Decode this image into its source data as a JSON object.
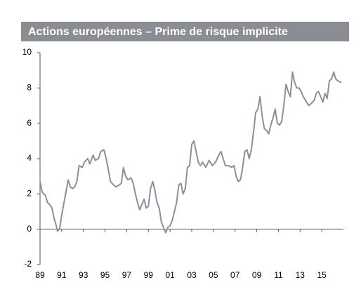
{
  "chart_data": {
    "type": "line",
    "title": "Actions européennes – Prime de risque implicite",
    "x": [
      1989.0,
      1989.2,
      1989.5,
      1989.7,
      1989.9,
      1990.1,
      1990.3,
      1990.5,
      1990.6,
      1990.8,
      1991.0,
      1991.3,
      1991.6,
      1991.8,
      1992.0,
      1992.2,
      1992.4,
      1992.6,
      1992.9,
      1993.1,
      1993.4,
      1993.6,
      1993.9,
      1994.1,
      1994.4,
      1994.6,
      1994.9,
      1995.1,
      1995.3,
      1995.5,
      1995.8,
      1996.0,
      1996.3,
      1996.5,
      1996.7,
      1996.9,
      1997.1,
      1997.4,
      1997.6,
      1997.8,
      1998.0,
      1998.2,
      1998.4,
      1998.6,
      1998.8,
      1999.0,
      1999.2,
      1999.4,
      1999.6,
      1999.8,
      2000.0,
      2000.2,
      2000.4,
      2000.6,
      2000.8,
      2001.0,
      2001.2,
      2001.4,
      2001.6,
      2001.8,
      2002.0,
      2002.2,
      2002.4,
      2002.6,
      2002.8,
      2003.0,
      2003.2,
      2003.4,
      2003.6,
      2003.8,
      2004.0,
      2004.3,
      2004.6,
      2004.9,
      2005.2,
      2005.5,
      2005.7,
      2005.9,
      2006.1,
      2006.4,
      2006.7,
      2006.9,
      2007.1,
      2007.3,
      2007.5,
      2007.7,
      2007.9,
      2008.1,
      2008.3,
      2008.5,
      2008.7,
      2008.9,
      2009.1,
      2009.3,
      2009.5,
      2009.7,
      2009.9,
      2010.1,
      2010.3,
      2010.5,
      2010.7,
      2010.9,
      2011.1,
      2011.3,
      2011.5,
      2011.7,
      2011.9,
      2012.1,
      2012.3,
      2012.5,
      2012.7,
      2012.9,
      2013.1,
      2013.3,
      2013.5,
      2013.8,
      2014.0,
      2014.3,
      2014.5,
      2014.7,
      2014.9,
      2015.1,
      2015.3,
      2015.5,
      2015.7,
      2015.9,
      2016.1,
      2016.3,
      2016.5,
      2016.8
    ],
    "series": [
      {
        "color": "#8a8f99",
        "values": [
          2.7,
          2.1,
          1.9,
          1.5,
          1.4,
          1.2,
          0.6,
          0.2,
          -0.1,
          0.0,
          0.8,
          1.8,
          2.8,
          2.4,
          2.3,
          2.4,
          2.7,
          3.6,
          3.5,
          3.8,
          4.0,
          3.7,
          4.2,
          3.9,
          4.0,
          4.4,
          4.5,
          4.0,
          3.4,
          2.7,
          2.5,
          2.4,
          2.5,
          2.6,
          3.5,
          3.0,
          2.8,
          2.9,
          2.6,
          2.0,
          1.5,
          1.1,
          1.4,
          1.7,
          1.2,
          1.3,
          2.3,
          2.7,
          2.2,
          1.5,
          1.2,
          0.4,
          0.1,
          -0.2,
          0.1,
          0.2,
          0.5,
          1.0,
          1.5,
          2.5,
          2.6,
          2.0,
          2.3,
          3.5,
          3.6,
          4.8,
          5.0,
          4.4,
          3.8,
          3.6,
          3.8,
          3.5,
          3.9,
          3.6,
          3.8,
          4.2,
          4.4,
          4.0,
          3.6,
          3.6,
          3.5,
          3.6,
          3.0,
          2.7,
          2.8,
          3.5,
          4.4,
          4.5,
          4.0,
          4.5,
          5.5,
          6.6,
          6.8,
          7.5,
          6.4,
          5.7,
          5.6,
          5.4,
          5.9,
          6.3,
          6.8,
          6.0,
          5.9,
          6.1,
          7.0,
          8.2,
          7.8,
          7.5,
          8.9,
          8.3,
          8.0,
          8.0,
          7.8,
          7.5,
          7.3,
          7.0,
          7.1,
          7.3,
          7.7,
          7.8,
          7.5,
          7.2,
          7.7,
          7.4,
          8.4,
          8.5,
          8.9,
          8.5,
          8.4,
          8.3
        ]
      }
    ],
    "xlim": [
      1989,
      2017
    ],
    "xticks": [
      {
        "value": 1989,
        "label": "89"
      },
      {
        "value": 1991,
        "label": "91"
      },
      {
        "value": 1993,
        "label": "93"
      },
      {
        "value": 1995,
        "label": "95"
      },
      {
        "value": 1997,
        "label": "97"
      },
      {
        "value": 1999,
        "label": "99"
      },
      {
        "value": 2001,
        "label": "01"
      },
      {
        "value": 2003,
        "label": "03"
      },
      {
        "value": 2005,
        "label": "05"
      },
      {
        "value": 2007,
        "label": "07"
      },
      {
        "value": 2009,
        "label": "09"
      },
      {
        "value": 2011,
        "label": "11"
      },
      {
        "value": 2013,
        "label": "13"
      },
      {
        "value": 2015,
        "label": "15"
      }
    ],
    "ylim": [
      -2,
      10
    ],
    "yticks": [
      -2,
      0,
      2,
      4,
      6,
      8,
      10
    ],
    "grid": false
  }
}
